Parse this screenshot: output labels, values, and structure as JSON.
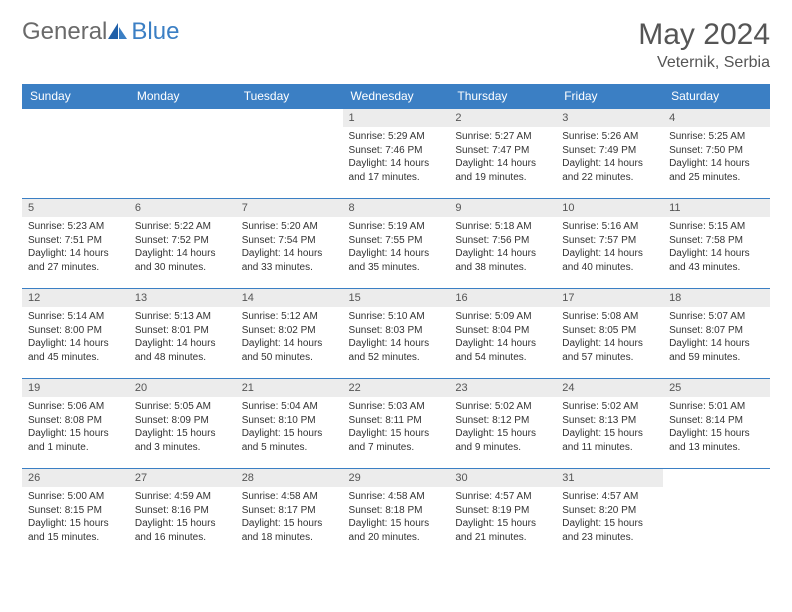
{
  "logo": {
    "general": "General",
    "blue": "Blue"
  },
  "title": "May 2024",
  "location": "Veternik, Serbia",
  "colors": {
    "header_bg": "#3b7fc4",
    "header_fg": "#ffffff",
    "daynum_bg": "#ececec",
    "border": "#3b7fc4",
    "text": "#333333",
    "title": "#555555"
  },
  "weekdays": [
    "Sunday",
    "Monday",
    "Tuesday",
    "Wednesday",
    "Thursday",
    "Friday",
    "Saturday"
  ],
  "weeks": [
    [
      {
        "n": "",
        "sr": "",
        "ss": "",
        "dl": ""
      },
      {
        "n": "",
        "sr": "",
        "ss": "",
        "dl": ""
      },
      {
        "n": "",
        "sr": "",
        "ss": "",
        "dl": ""
      },
      {
        "n": "1",
        "sr": "Sunrise: 5:29 AM",
        "ss": "Sunset: 7:46 PM",
        "dl": "Daylight: 14 hours and 17 minutes."
      },
      {
        "n": "2",
        "sr": "Sunrise: 5:27 AM",
        "ss": "Sunset: 7:47 PM",
        "dl": "Daylight: 14 hours and 19 minutes."
      },
      {
        "n": "3",
        "sr": "Sunrise: 5:26 AM",
        "ss": "Sunset: 7:49 PM",
        "dl": "Daylight: 14 hours and 22 minutes."
      },
      {
        "n": "4",
        "sr": "Sunrise: 5:25 AM",
        "ss": "Sunset: 7:50 PM",
        "dl": "Daylight: 14 hours and 25 minutes."
      }
    ],
    [
      {
        "n": "5",
        "sr": "Sunrise: 5:23 AM",
        "ss": "Sunset: 7:51 PM",
        "dl": "Daylight: 14 hours and 27 minutes."
      },
      {
        "n": "6",
        "sr": "Sunrise: 5:22 AM",
        "ss": "Sunset: 7:52 PM",
        "dl": "Daylight: 14 hours and 30 minutes."
      },
      {
        "n": "7",
        "sr": "Sunrise: 5:20 AM",
        "ss": "Sunset: 7:54 PM",
        "dl": "Daylight: 14 hours and 33 minutes."
      },
      {
        "n": "8",
        "sr": "Sunrise: 5:19 AM",
        "ss": "Sunset: 7:55 PM",
        "dl": "Daylight: 14 hours and 35 minutes."
      },
      {
        "n": "9",
        "sr": "Sunrise: 5:18 AM",
        "ss": "Sunset: 7:56 PM",
        "dl": "Daylight: 14 hours and 38 minutes."
      },
      {
        "n": "10",
        "sr": "Sunrise: 5:16 AM",
        "ss": "Sunset: 7:57 PM",
        "dl": "Daylight: 14 hours and 40 minutes."
      },
      {
        "n": "11",
        "sr": "Sunrise: 5:15 AM",
        "ss": "Sunset: 7:58 PM",
        "dl": "Daylight: 14 hours and 43 minutes."
      }
    ],
    [
      {
        "n": "12",
        "sr": "Sunrise: 5:14 AM",
        "ss": "Sunset: 8:00 PM",
        "dl": "Daylight: 14 hours and 45 minutes."
      },
      {
        "n": "13",
        "sr": "Sunrise: 5:13 AM",
        "ss": "Sunset: 8:01 PM",
        "dl": "Daylight: 14 hours and 48 minutes."
      },
      {
        "n": "14",
        "sr": "Sunrise: 5:12 AM",
        "ss": "Sunset: 8:02 PM",
        "dl": "Daylight: 14 hours and 50 minutes."
      },
      {
        "n": "15",
        "sr": "Sunrise: 5:10 AM",
        "ss": "Sunset: 8:03 PM",
        "dl": "Daylight: 14 hours and 52 minutes."
      },
      {
        "n": "16",
        "sr": "Sunrise: 5:09 AM",
        "ss": "Sunset: 8:04 PM",
        "dl": "Daylight: 14 hours and 54 minutes."
      },
      {
        "n": "17",
        "sr": "Sunrise: 5:08 AM",
        "ss": "Sunset: 8:05 PM",
        "dl": "Daylight: 14 hours and 57 minutes."
      },
      {
        "n": "18",
        "sr": "Sunrise: 5:07 AM",
        "ss": "Sunset: 8:07 PM",
        "dl": "Daylight: 14 hours and 59 minutes."
      }
    ],
    [
      {
        "n": "19",
        "sr": "Sunrise: 5:06 AM",
        "ss": "Sunset: 8:08 PM",
        "dl": "Daylight: 15 hours and 1 minute."
      },
      {
        "n": "20",
        "sr": "Sunrise: 5:05 AM",
        "ss": "Sunset: 8:09 PM",
        "dl": "Daylight: 15 hours and 3 minutes."
      },
      {
        "n": "21",
        "sr": "Sunrise: 5:04 AM",
        "ss": "Sunset: 8:10 PM",
        "dl": "Daylight: 15 hours and 5 minutes."
      },
      {
        "n": "22",
        "sr": "Sunrise: 5:03 AM",
        "ss": "Sunset: 8:11 PM",
        "dl": "Daylight: 15 hours and 7 minutes."
      },
      {
        "n": "23",
        "sr": "Sunrise: 5:02 AM",
        "ss": "Sunset: 8:12 PM",
        "dl": "Daylight: 15 hours and 9 minutes."
      },
      {
        "n": "24",
        "sr": "Sunrise: 5:02 AM",
        "ss": "Sunset: 8:13 PM",
        "dl": "Daylight: 15 hours and 11 minutes."
      },
      {
        "n": "25",
        "sr": "Sunrise: 5:01 AM",
        "ss": "Sunset: 8:14 PM",
        "dl": "Daylight: 15 hours and 13 minutes."
      }
    ],
    [
      {
        "n": "26",
        "sr": "Sunrise: 5:00 AM",
        "ss": "Sunset: 8:15 PM",
        "dl": "Daylight: 15 hours and 15 minutes."
      },
      {
        "n": "27",
        "sr": "Sunrise: 4:59 AM",
        "ss": "Sunset: 8:16 PM",
        "dl": "Daylight: 15 hours and 16 minutes."
      },
      {
        "n": "28",
        "sr": "Sunrise: 4:58 AM",
        "ss": "Sunset: 8:17 PM",
        "dl": "Daylight: 15 hours and 18 minutes."
      },
      {
        "n": "29",
        "sr": "Sunrise: 4:58 AM",
        "ss": "Sunset: 8:18 PM",
        "dl": "Daylight: 15 hours and 20 minutes."
      },
      {
        "n": "30",
        "sr": "Sunrise: 4:57 AM",
        "ss": "Sunset: 8:19 PM",
        "dl": "Daylight: 15 hours and 21 minutes."
      },
      {
        "n": "31",
        "sr": "Sunrise: 4:57 AM",
        "ss": "Sunset: 8:20 PM",
        "dl": "Daylight: 15 hours and 23 minutes."
      },
      {
        "n": "",
        "sr": "",
        "ss": "",
        "dl": ""
      }
    ]
  ]
}
